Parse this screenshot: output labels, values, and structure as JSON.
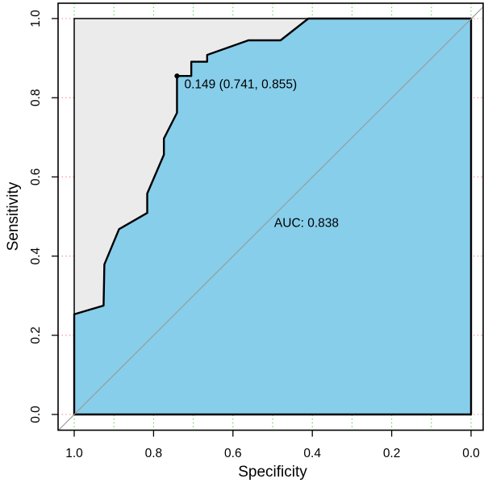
{
  "figure": {
    "background": "#ffffff"
  },
  "chart_data": {
    "type": "line",
    "subtype": "roc-curve",
    "title": "",
    "xlabel": "Specificity",
    "ylabel": "Sensitivity",
    "xlim": [
      1.0,
      0.0
    ],
    "ylim": [
      0.0,
      1.0
    ],
    "x_ticks": [
      {
        "label": "1.0",
        "value": 1.0
      },
      {
        "label": "0.8",
        "value": 0.8
      },
      {
        "label": "0.6",
        "value": 0.6
      },
      {
        "label": "0.4",
        "value": 0.4
      },
      {
        "label": "0.2",
        "value": 0.2
      },
      {
        "label": "0.0",
        "value": 0.0
      }
    ],
    "y_ticks": [
      {
        "label": "0.0",
        "value": 0.0
      },
      {
        "label": "0.2",
        "value": 0.2
      },
      {
        "label": "0.4",
        "value": 0.4
      },
      {
        "label": "0.6",
        "value": 0.6
      },
      {
        "label": "0.8",
        "value": 0.8
      },
      {
        "label": "1.0",
        "value": 1.0
      }
    ],
    "grid": {
      "on": true,
      "style": "dotted",
      "vertical_values": [
        1.0,
        0.9,
        0.8,
        0.7,
        0.6,
        0.5,
        0.4,
        0.3,
        0.2,
        0.1,
        0.0
      ],
      "horizontal_values": [
        0.0,
        0.2,
        0.4,
        0.6,
        0.8,
        1.0
      ],
      "vertical_color": "#44cf44",
      "horizontal_color": "#ff7474"
    },
    "series": [
      {
        "name": "ROC curve",
        "points_spec_sens": [
          [
            1.0,
            0.0
          ],
          [
            1.0,
            0.253
          ],
          [
            0.926,
            0.275
          ],
          [
            0.924,
            0.379
          ],
          [
            0.887,
            0.468
          ],
          [
            0.816,
            0.509
          ],
          [
            0.816,
            0.558
          ],
          [
            0.774,
            0.656
          ],
          [
            0.774,
            0.697
          ],
          [
            0.741,
            0.762
          ],
          [
            0.741,
            0.855
          ],
          [
            0.705,
            0.855
          ],
          [
            0.705,
            0.891
          ],
          [
            0.665,
            0.891
          ],
          [
            0.665,
            0.908
          ],
          [
            0.561,
            0.945
          ],
          [
            0.48,
            0.945
          ],
          [
            0.41,
            1.0
          ],
          [
            0.0,
            1.0
          ]
        ]
      }
    ],
    "chance_line": true,
    "auc": {
      "value": 0.838,
      "label": "AUC: 0.838"
    },
    "threshold": {
      "value": "0.149",
      "specificity": 0.741,
      "sensitivity": 0.855,
      "label": "0.149 (0.741, 0.855)"
    },
    "colors": {
      "auc_polygon_fill": "#87CEEB",
      "max_auc_polygon_fill": "#EBEBEB",
      "curve": "#000000",
      "chance_line": "#9b9b9b",
      "frame": "#000000",
      "text": "#000000"
    }
  }
}
